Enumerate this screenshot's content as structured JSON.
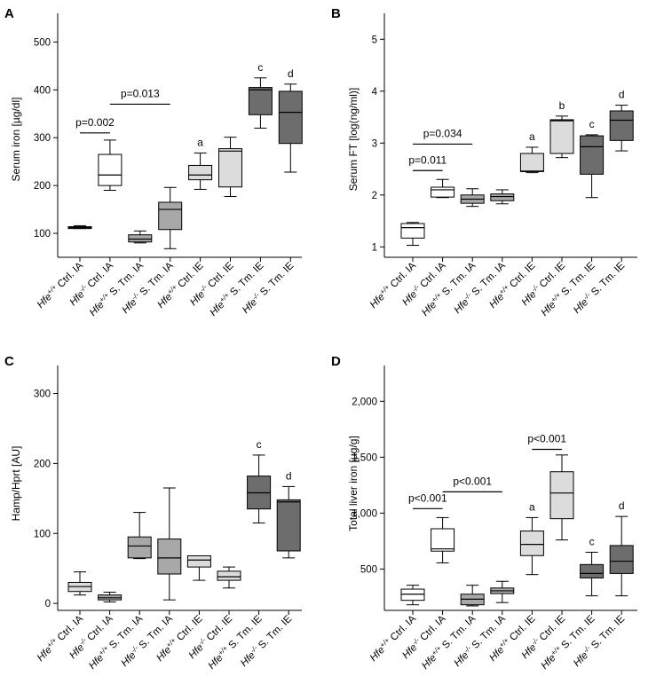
{
  "chart_data": [
    {
      "type": "box",
      "panel": "A",
      "ylabel": "Serum iron [µg/dl]",
      "ylim": [
        50,
        560
      ],
      "yticks": [
        100,
        200,
        300,
        400,
        500
      ],
      "ytick_labels": [
        "100",
        "200",
        "300",
        "400",
        "500"
      ],
      "categories": [
        {
          "sup": "+/+",
          "label": "Ctrl. IA"
        },
        {
          "sup": "-/-",
          "label": "Ctrl. IA"
        },
        {
          "sup": "+/+",
          "label": "S. Tm. IA"
        },
        {
          "sup": "-/-",
          "label": "S. Tm. IA"
        },
        {
          "sup": "+/+",
          "label": "Ctrl. IE"
        },
        {
          "sup": "-/-",
          "label": "Ctrl. IE"
        },
        {
          "sup": "+/+",
          "label": "S. Tm. IE"
        },
        {
          "sup": "-/-",
          "label": "S. Tm. IE"
        }
      ],
      "gene": "Hfe",
      "boxes": [
        {
          "min": 110,
          "q1": 110,
          "median": 112,
          "q3": 114,
          "max": 116,
          "color": "#a8a8a8"
        },
        {
          "min": 190,
          "q1": 200,
          "median": 222,
          "q3": 265,
          "max": 295,
          "color": "#ffffff"
        },
        {
          "min": 80,
          "q1": 82,
          "median": 88,
          "q3": 97,
          "max": 105,
          "color": "#a8a8a8"
        },
        {
          "min": 68,
          "q1": 108,
          "median": 150,
          "q3": 165,
          "max": 196,
          "color": "#a8a8a8"
        },
        {
          "min": 192,
          "q1": 212,
          "median": 222,
          "q3": 242,
          "max": 268,
          "color": "#dcdcdc"
        },
        {
          "min": 177,
          "q1": 197,
          "median": 272,
          "q3": 277,
          "max": 301,
          "color": "#dcdcdc"
        },
        {
          "min": 320,
          "q1": 348,
          "median": 400,
          "q3": 405,
          "max": 425,
          "color": "#6d6d6d"
        },
        {
          "min": 228,
          "q1": 288,
          "median": 353,
          "q3": 397,
          "max": 412,
          "color": "#6d6d6d"
        }
      ],
      "letters": [
        {
          "text": "a",
          "index": 4,
          "value": 268
        },
        {
          "text": "c",
          "index": 6,
          "value": 425
        },
        {
          "text": "d",
          "index": 7,
          "value": 412
        }
      ],
      "brackets": [
        {
          "text": "p=0.002",
          "from": 0,
          "to": 1,
          "value": 310
        },
        {
          "text": "p=0.013",
          "from": 1,
          "to": 3,
          "value": 370
        }
      ]
    },
    {
      "type": "box",
      "panel": "B",
      "ylabel": "Serum FT [log(ng/ml)]",
      "ylim": [
        0.8,
        5.5
      ],
      "yticks": [
        1,
        2,
        3,
        4,
        5
      ],
      "ytick_labels": [
        "1",
        "2",
        "3",
        "4",
        "5"
      ],
      "categories": [
        {
          "sup": "+/+",
          "label": "Ctrl. IA"
        },
        {
          "sup": "-/-",
          "label": "Ctrl. IA"
        },
        {
          "sup": "+/+",
          "label": "S. Tm. IA"
        },
        {
          "sup": "-/-",
          "label": "S. Tm. IA"
        },
        {
          "sup": "+/+",
          "label": "Ctrl. IE"
        },
        {
          "sup": "-/-",
          "label": "Ctrl. IE"
        },
        {
          "sup": "+/+",
          "label": "S. Tm. IE"
        },
        {
          "sup": "-/-",
          "label": "S. Tm. IE"
        }
      ],
      "gene": "Hfe",
      "boxes": [
        {
          "min": 1.03,
          "q1": 1.17,
          "median": 1.37,
          "q3": 1.45,
          "max": 1.47,
          "color": "#ffffff"
        },
        {
          "min": 1.95,
          "q1": 1.96,
          "median": 2.1,
          "q3": 2.15,
          "max": 2.3,
          "color": "#ffffff"
        },
        {
          "min": 1.78,
          "q1": 1.84,
          "median": 1.92,
          "q3": 2.0,
          "max": 2.12,
          "color": "#a8a8a8"
        },
        {
          "min": 1.83,
          "q1": 1.89,
          "median": 1.97,
          "q3": 2.02,
          "max": 2.1,
          "color": "#a8a8a8"
        },
        {
          "min": 2.43,
          "q1": 2.45,
          "median": 2.46,
          "q3": 2.8,
          "max": 2.92,
          "color": "#dcdcdc"
        },
        {
          "min": 2.72,
          "q1": 2.8,
          "median": 3.43,
          "q3": 3.45,
          "max": 3.52,
          "color": "#dcdcdc"
        },
        {
          "min": 1.95,
          "q1": 2.4,
          "median": 2.93,
          "q3": 3.14,
          "max": 3.16,
          "color": "#6d6d6d"
        },
        {
          "min": 2.85,
          "q1": 3.05,
          "median": 3.44,
          "q3": 3.62,
          "max": 3.73,
          "color": "#6d6d6d"
        }
      ],
      "letters": [
        {
          "text": "a",
          "index": 4,
          "value": 2.92
        },
        {
          "text": "b",
          "index": 5,
          "value": 3.52
        },
        {
          "text": "c",
          "index": 6,
          "value": 3.16
        },
        {
          "text": "d",
          "index": 7,
          "value": 3.73
        }
      ],
      "brackets": [
        {
          "text": "p=0.011",
          "from": 0,
          "to": 1,
          "value": 2.47
        },
        {
          "text": "p=0.034",
          "from": 0,
          "to": 2,
          "value": 2.98
        }
      ]
    },
    {
      "type": "box",
      "panel": "C",
      "ylabel": "Hamp/Hprt [AU]",
      "ylim": [
        -10,
        340
      ],
      "yticks": [
        0,
        100,
        200,
        300
      ],
      "ytick_labels": [
        "0",
        "100",
        "200",
        "300"
      ],
      "categories": [
        {
          "sup": "+/+",
          "label": "Ctrl. IA"
        },
        {
          "sup": "-/-",
          "label": "Ctrl. IA"
        },
        {
          "sup": "+/+",
          "label": "S. Tm. IA"
        },
        {
          "sup": "-/-",
          "label": "S. Tm. IA"
        },
        {
          "sup": "+/+",
          "label": "Ctrl. IE"
        },
        {
          "sup": "-/-",
          "label": "Ctrl. IE"
        },
        {
          "sup": "+/+",
          "label": "S. Tm. IE"
        },
        {
          "sup": "-/-",
          "label": "S. Tm. IE"
        }
      ],
      "gene": "Hfe",
      "boxes": [
        {
          "min": 12,
          "q1": 17,
          "median": 24,
          "q3": 30,
          "max": 45,
          "color": "#dcdcdc"
        },
        {
          "min": 2,
          "q1": 5,
          "median": 8,
          "q3": 12,
          "max": 16,
          "color": "#a8a8a8"
        },
        {
          "min": 64,
          "q1": 65,
          "median": 82,
          "q3": 95,
          "max": 130,
          "color": "#a8a8a8"
        },
        {
          "min": 5,
          "q1": 42,
          "median": 65,
          "q3": 92,
          "max": 165,
          "color": "#a8a8a8"
        },
        {
          "min": 33,
          "q1": 52,
          "median": 62,
          "q3": 68,
          "max": 68,
          "color": "#dcdcdc"
        },
        {
          "min": 22,
          "q1": 33,
          "median": 38,
          "q3": 46,
          "max": 52,
          "color": "#dcdcdc"
        },
        {
          "min": 115,
          "q1": 135,
          "median": 158,
          "q3": 182,
          "max": 212,
          "color": "#6d6d6d"
        },
        {
          "min": 65,
          "q1": 75,
          "median": 145,
          "q3": 148,
          "max": 167,
          "color": "#6d6d6d"
        }
      ],
      "letters": [
        {
          "text": "c",
          "index": 6,
          "value": 212
        },
        {
          "text": "d",
          "index": 7,
          "value": 167
        }
      ],
      "brackets": []
    },
    {
      "type": "box",
      "panel": "D",
      "ylabel": "Total liver iron [µg/g]",
      "ylim": [
        130,
        2320
      ],
      "yticks": [
        500,
        1000,
        1500,
        2000
      ],
      "ytick_labels": [
        "500",
        "1,000",
        "1,500",
        "2,000"
      ],
      "categories": [
        {
          "sup": "+/+",
          "label": "Ctrl. IA"
        },
        {
          "sup": "-/-",
          "label": "Ctrl. IA"
        },
        {
          "sup": "+/+",
          "label": "S. Tm. IA"
        },
        {
          "sup": "-/-",
          "label": "S. Tm. IA"
        },
        {
          "sup": "+/+",
          "label": "Ctrl. IE"
        },
        {
          "sup": "-/-",
          "label": "Ctrl. IE"
        },
        {
          "sup": "+/+",
          "label": "S. Tm. IE"
        },
        {
          "sup": "-/-",
          "label": "S. Tm. IE"
        }
      ],
      "gene": "Hfe",
      "boxes": [
        {
          "min": 180,
          "q1": 220,
          "median": 275,
          "q3": 320,
          "max": 355,
          "color": "#ffffff"
        },
        {
          "min": 555,
          "q1": 660,
          "median": 680,
          "q3": 860,
          "max": 960,
          "color": "#ffffff"
        },
        {
          "min": 170,
          "q1": 180,
          "median": 230,
          "q3": 275,
          "max": 355,
          "color": "#a8a8a8"
        },
        {
          "min": 200,
          "q1": 280,
          "median": 305,
          "q3": 330,
          "max": 390,
          "color": "#a8a8a8"
        },
        {
          "min": 450,
          "q1": 620,
          "median": 720,
          "q3": 840,
          "max": 960,
          "color": "#dcdcdc"
        },
        {
          "min": 760,
          "q1": 950,
          "median": 1180,
          "q3": 1370,
          "max": 1520,
          "color": "#dcdcdc"
        },
        {
          "min": 260,
          "q1": 420,
          "median": 460,
          "q3": 540,
          "max": 650,
          "color": "#6d6d6d"
        },
        {
          "min": 260,
          "q1": 460,
          "median": 570,
          "q3": 710,
          "max": 970,
          "color": "#6d6d6d"
        }
      ],
      "letters": [
        {
          "text": "a",
          "index": 4,
          "value": 960
        },
        {
          "text": "c",
          "index": 6,
          "value": 650
        },
        {
          "text": "d",
          "index": 7,
          "value": 970
        }
      ],
      "brackets": [
        {
          "text": "p<0.001",
          "from": 0,
          "to": 1,
          "value": 1040
        },
        {
          "text": "p<0.001",
          "from": 1,
          "to": 3,
          "value": 1190
        },
        {
          "text": "p<0.001",
          "from": 4,
          "to": 5,
          "value": 1570
        }
      ]
    }
  ]
}
